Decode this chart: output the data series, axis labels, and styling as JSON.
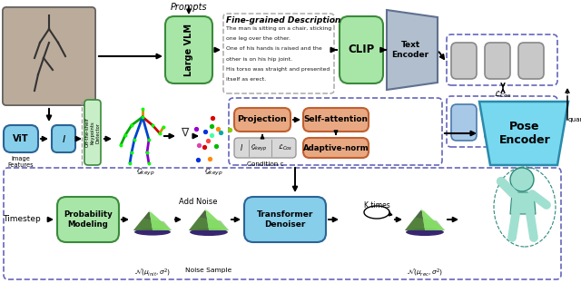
{
  "bg": "#ffffff",
  "green_fc": "#a8e6a8",
  "green_ec": "#3a8a3a",
  "blue_fc": "#87ceeb",
  "blue_ec": "#2a6496",
  "salmon_fc": "#e8a882",
  "salmon_ec": "#c06030",
  "gray_fc": "#c8c8c8",
  "gray_ec": "#888888",
  "blue_token_fc": "#a8c8e8",
  "blue_token_ec": "#4a7aaa",
  "te_fc": "#b0bece",
  "te_ec": "#607090",
  "pose_fc": "#78d8f0",
  "pose_ec": "#2a8aaa",
  "teal_fc": "#a0e0d0",
  "teal_ec": "#2a8a7a",
  "dash_ec": "#6666bb",
  "cond_fc": "#d8d8d8",
  "cond_ec": "#999999",
  "photo_fc": "#c0b0a0",
  "desc_lines": [
    "The man is sitting on a chair, sticking",
    "one leg over the other.",
    "One of his hands is raised and the",
    "other is on his hip joint.",
    "His torso was straight and presented",
    "itself as erect."
  ]
}
